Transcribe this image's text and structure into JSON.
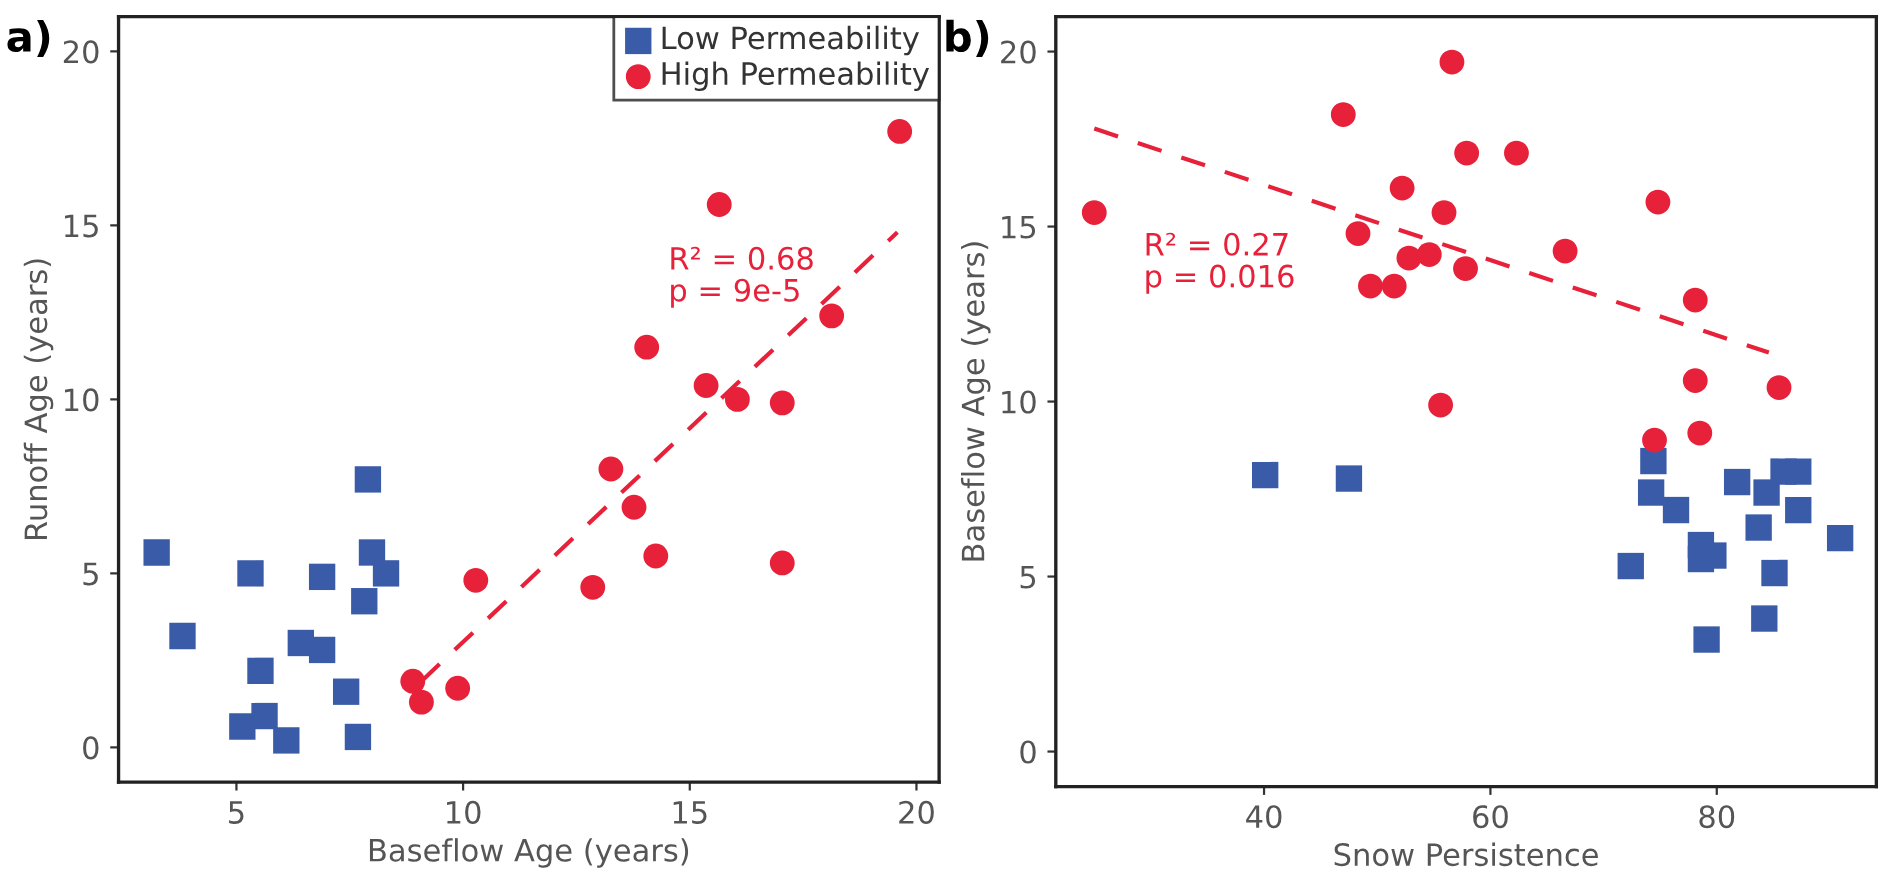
{
  "chart_data": [
    {
      "type": "scatter",
      "title": "a)",
      "xlabel": "Baseflow Age (years)",
      "ylabel": "Runoff Age (years)",
      "xlim": [
        2.4,
        20.5
      ],
      "ylim": [
        -1,
        21
      ],
      "xticks": [
        5,
        10,
        15,
        20
      ],
      "yticks": [
        0,
        5,
        10,
        15,
        20
      ],
      "grid": false,
      "legend": "top right",
      "annotations": [
        "R² = 0.68\np = 9e-5"
      ],
      "series": [
        {
          "name": "Low Permeability",
          "color": "#3a5ba8",
          "marker": "square",
          "x": [
            3.24,
            3.81,
            5.31,
            5.53,
            5.13,
            5.62,
            6.1,
            6.42,
            6.89,
            6.89,
            7.42,
            7.68,
            7.82,
            7.9,
            7.99,
            8.3
          ],
          "values": [
            5.6,
            3.2,
            5.0,
            2.2,
            0.6,
            0.9,
            0.2,
            3.0,
            4.9,
            2.8,
            1.6,
            0.3,
            4.2,
            7.7,
            5.6,
            5.0
          ]
        },
        {
          "name": "High Permeability",
          "color": "#e8213a",
          "marker": "circle",
          "x": [
            8.89,
            9.08,
            9.88,
            10.28,
            12.86,
            13.26,
            13.77,
            14.25,
            17.04,
            16.05,
            17.04,
            14.05,
            15.36,
            15.65,
            18.13,
            19.63
          ],
          "values": [
            1.9,
            1.3,
            1.7,
            4.8,
            4.6,
            8.0,
            6.9,
            5.5,
            5.3,
            10.0,
            9.9,
            11.5,
            10.4,
            15.6,
            12.4,
            17.7
          ]
        },
        {
          "type": "line",
          "color": "#e8213a",
          "marker": "none",
          "line_style": "dashed",
          "x": [
            9.08,
            19.58
          ],
          "values": [
            1.9,
            14.8
          ]
        }
      ]
    },
    {
      "type": "scatter",
      "title": "b)",
      "xlabel": "Snow Persistence",
      "ylabel": "Baseflow Age (years)",
      "xlim": [
        21.6,
        94.1
      ],
      "ylim": [
        -1,
        21
      ],
      "xticks": [
        40,
        60,
        80
      ],
      "yticks": [
        0,
        5,
        10,
        15,
        20
      ],
      "grid": false,
      "legend": false,
      "annotations": [
        "R² = 0.27\np = 0.016"
      ],
      "series": [
        {
          "color": "#3a5ba8",
          "marker": "square",
          "x": [
            40.1,
            47.5,
            72.4,
            74.4,
            74.2,
            76.4,
            78.6,
            78.6,
            79.7,
            79.1,
            81.8,
            83.7,
            84.4,
            84.2,
            85.1,
            85.9,
            87.2,
            87.2,
            90.9
          ],
          "values": [
            7.9,
            7.8,
            5.3,
            8.3,
            7.4,
            6.9,
            5.9,
            5.5,
            5.6,
            3.2,
            7.7,
            6.4,
            7.4,
            3.8,
            5.1,
            8.0,
            8.0,
            6.9,
            6.1
          ]
        },
        {
          "color": "#e8213a",
          "marker": "circle",
          "x": [
            25.0,
            47.0,
            48.3,
            49.4,
            51.5,
            52.2,
            52.8,
            54.6,
            55.9,
            55.6,
            56.6,
            57.8,
            57.9,
            62.3,
            66.6,
            74.8,
            74.5,
            78.1,
            78.1,
            78.5,
            85.5
          ],
          "values": [
            15.4,
            18.2,
            14.8,
            13.3,
            13.3,
            16.1,
            14.1,
            14.2,
            15.4,
            9.9,
            19.7,
            13.8,
            17.1,
            17.1,
            14.3,
            15.7,
            8.9,
            12.9,
            10.6,
            9.1,
            10.4
          ]
        },
        {
          "type": "line",
          "color": "#e8213a",
          "marker": "none",
          "line_style": "dashed",
          "x": [
            25.0,
            84.6
          ],
          "values": [
            17.8,
            11.4
          ]
        }
      ]
    }
  ]
}
